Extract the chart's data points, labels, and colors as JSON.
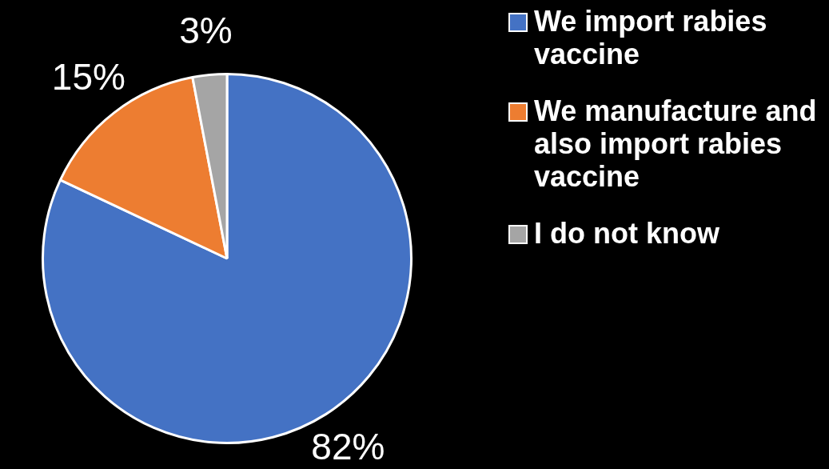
{
  "chart_data": {
    "type": "pie",
    "categories": [
      "We import rabies vaccine",
      "We manufacture and also import rabies vaccine",
      "I do not know"
    ],
    "values": [
      82,
      15,
      3
    ],
    "colors": [
      "#4472c4",
      "#ed7d31",
      "#a5a5a5"
    ],
    "value_labels": [
      "82%",
      "15%",
      "3%"
    ],
    "legend": "right"
  }
}
